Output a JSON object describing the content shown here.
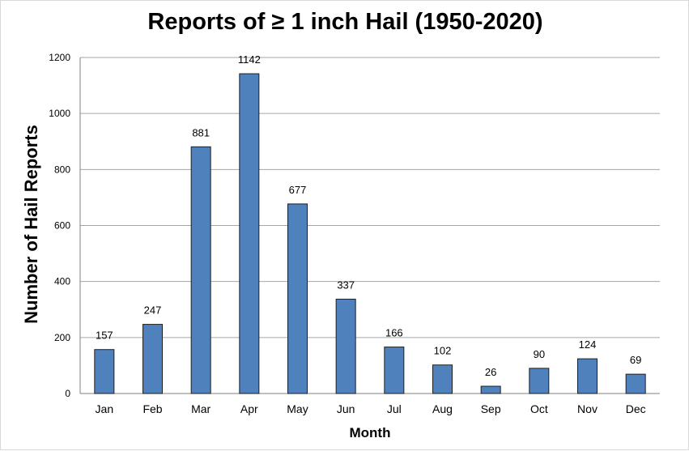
{
  "chart_data": {
    "type": "bar",
    "title": "Reports of ≥ 1 inch Hail (1950-2020)",
    "xlabel": "Month",
    "ylabel": "Number of Hail Reports",
    "categories": [
      "Jan",
      "Feb",
      "Mar",
      "Apr",
      "May",
      "Jun",
      "Jul",
      "Aug",
      "Sep",
      "Oct",
      "Nov",
      "Dec"
    ],
    "values": [
      157,
      247,
      881,
      1142,
      677,
      337,
      166,
      102,
      26,
      90,
      124,
      69
    ],
    "ylim": [
      0,
      1200
    ],
    "yticks": [
      0,
      200,
      400,
      600,
      800,
      1000,
      1200
    ],
    "grid": true,
    "legend": "none",
    "bar_color": "#4F81BD",
    "bar_edge_color": "#1F1F1F",
    "grid_color": "#A6A6A6"
  }
}
